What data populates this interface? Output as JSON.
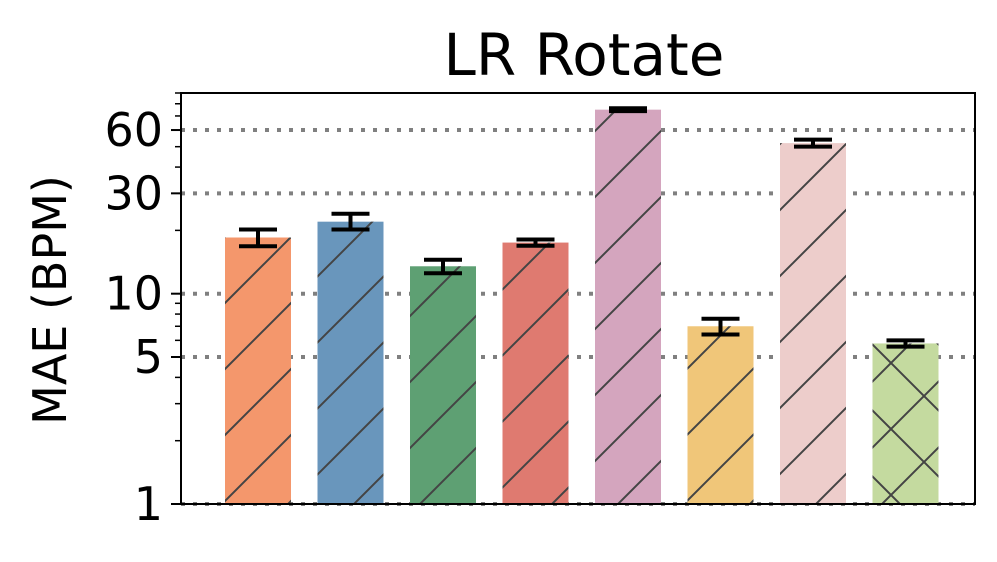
{
  "chart_data": {
    "type": "bar",
    "title": "LR Rotate",
    "ylabel": "MAE (BPM)",
    "xlabel": "",
    "yscale": "log",
    "ylim": [
      1,
      90
    ],
    "yticks": [
      1,
      5,
      10,
      30,
      60
    ],
    "ytick_labels": [
      "1",
      "5",
      "10",
      "30",
      "60"
    ],
    "grid": "horizontal dotted at major ticks",
    "categories": [
      "",
      "",
      "",
      "",
      "",
      "",
      "",
      ""
    ],
    "values": [
      18.5,
      22.0,
      13.5,
      17.5,
      75.0,
      7.0,
      52.0,
      5.8
    ],
    "error_low": [
      16.8,
      20.2,
      12.5,
      16.9,
      73.8,
      6.4,
      50.0,
      5.6
    ],
    "error_high": [
      20.2,
      24.0,
      14.5,
      18.1,
      76.2,
      7.6,
      54.0,
      6.0
    ],
    "colors": [
      "#F4976C",
      "#6996BC",
      "#5EA073",
      "#DF7A70",
      "#D4A5BE",
      "#F0C679",
      "#EDCDCB",
      "#C4DA9F"
    ],
    "hatches": [
      "/",
      "/",
      "/",
      "/",
      "/",
      "/",
      "/",
      "x"
    ]
  }
}
